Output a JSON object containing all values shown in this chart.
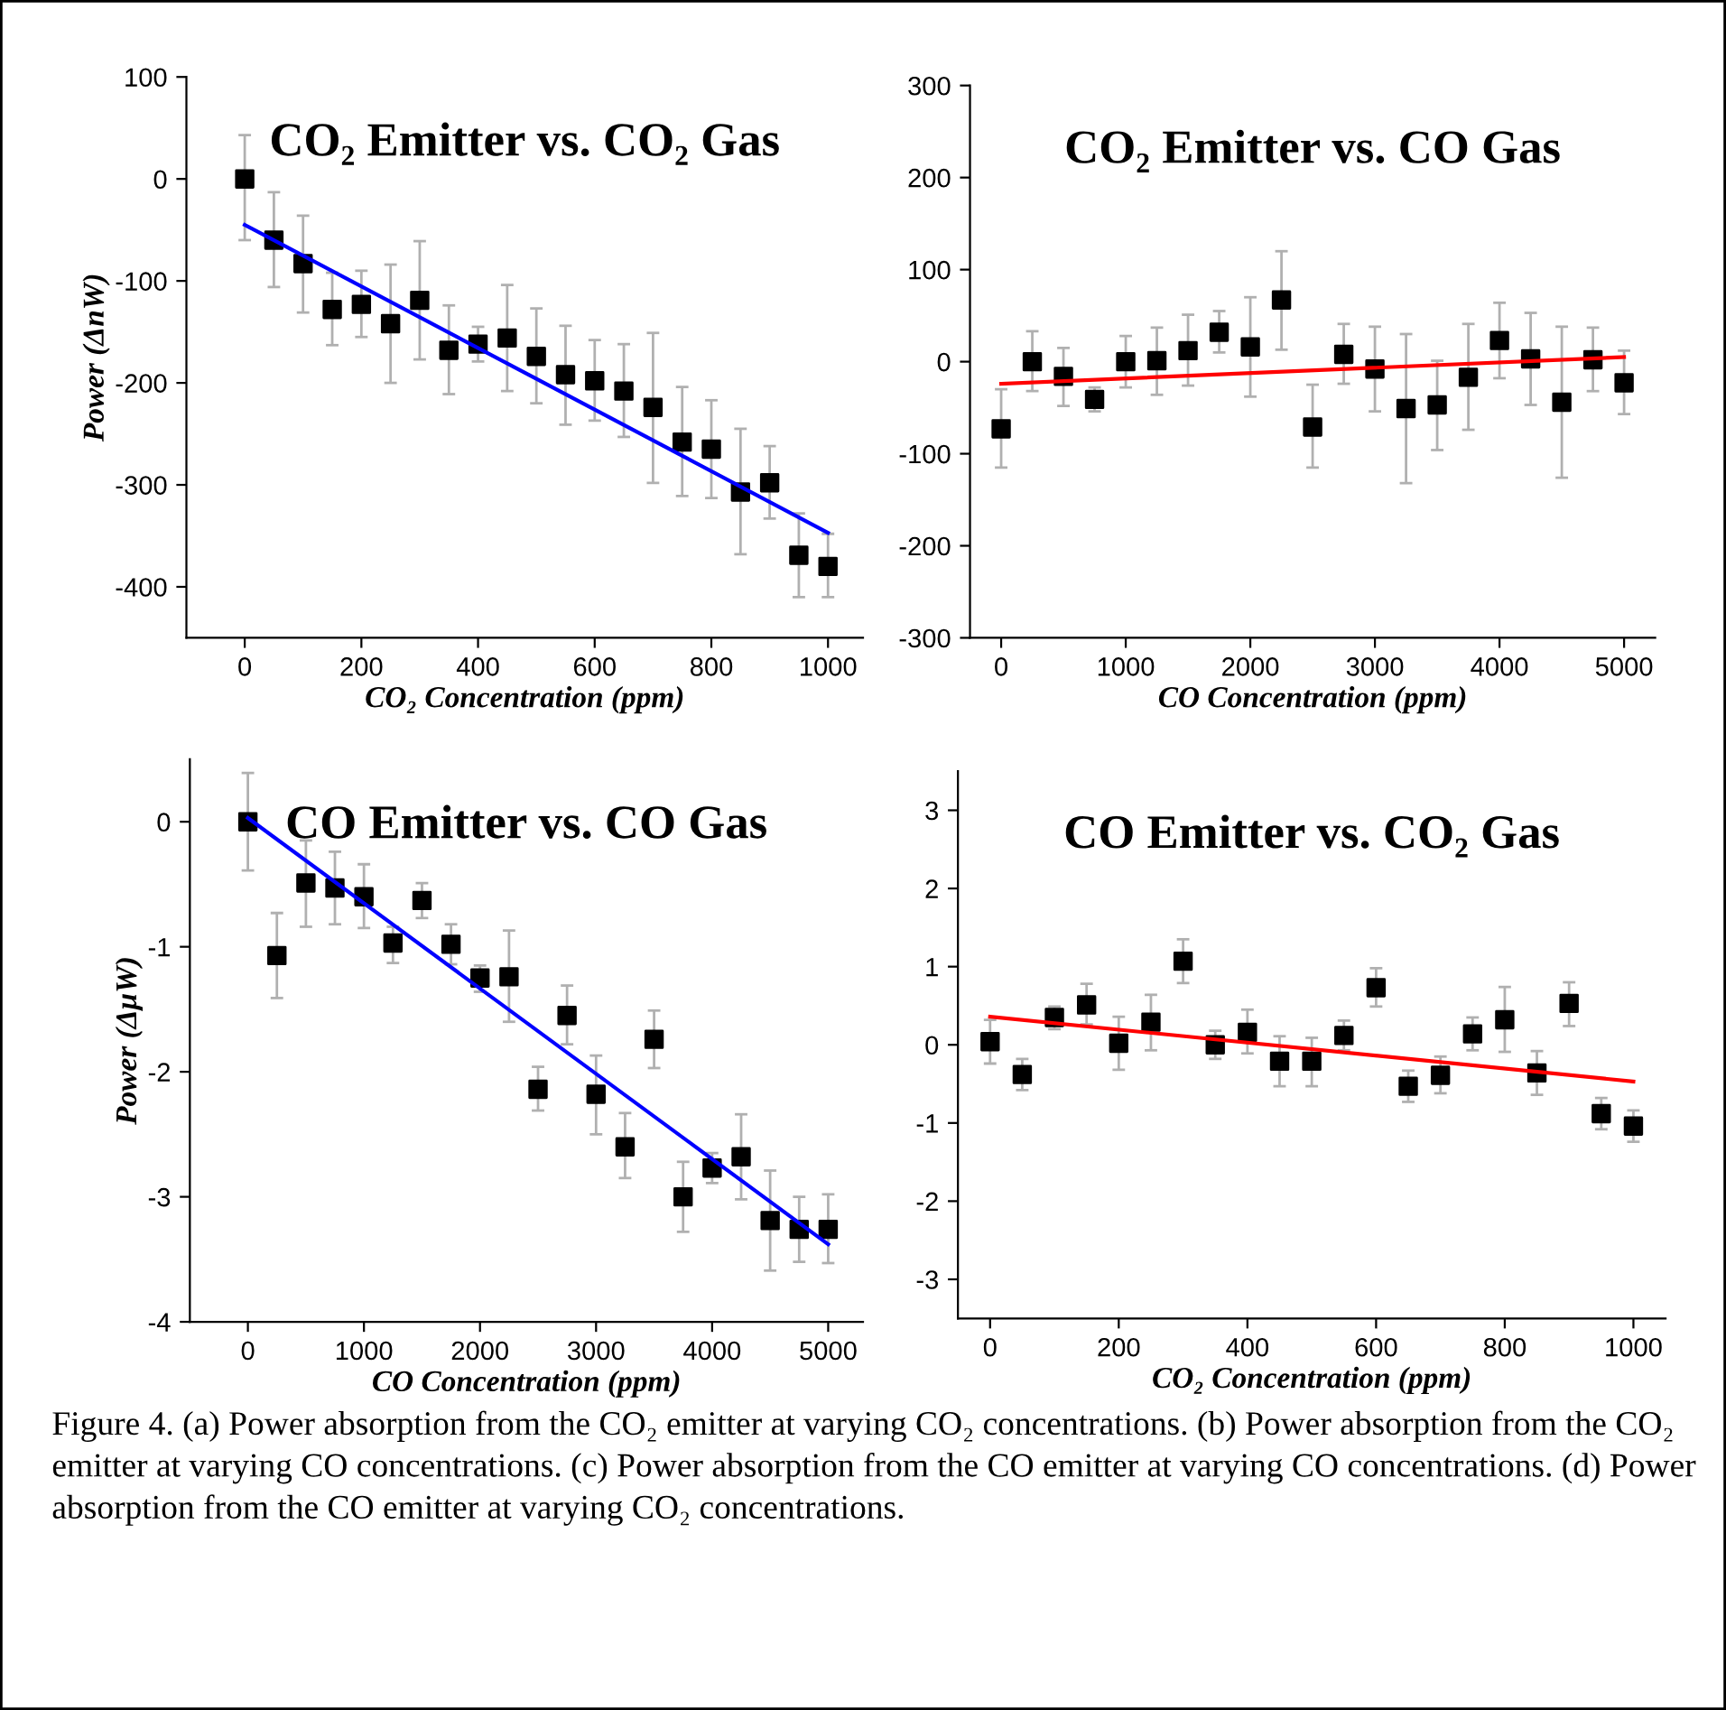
{
  "chart_data": [
    {
      "type": "scatter",
      "title": "CO₂ Emitter vs. CO₂ Gas",
      "xlabel": "CO₂ Concentration (ppm)",
      "ylabel": "Power (ΔnW)",
      "xlim": [
        -100,
        1060
      ],
      "ylim": [
        -450,
        100
      ],
      "xticks": [
        0,
        200,
        400,
        600,
        800,
        1000
      ],
      "yticks": [
        -400,
        -300,
        -200,
        -100,
        0,
        100
      ],
      "grid": false,
      "legend": false,
      "series": [
        {
          "color": "#000000",
          "marker": "square",
          "x": [
            0,
            50,
            100,
            150,
            200,
            250,
            300,
            350,
            400,
            450,
            500,
            550,
            600,
            650,
            700,
            750,
            800,
            850,
            900,
            950,
            1000
          ],
          "values": [
            0,
            -60,
            -83,
            -128,
            -123,
            -142,
            -119,
            -168,
            -162,
            -156,
            -174,
            -192,
            -198,
            -208,
            -224,
            -258,
            -265,
            -307,
            -298,
            -369,
            -380
          ],
          "errors": [
            [
              -60,
              43
            ],
            [
              -106,
              -13
            ],
            [
              -131,
              -36
            ],
            [
              -163,
              -92
            ],
            [
              -155,
              -90
            ],
            [
              -200,
              -84
            ],
            [
              -177,
              -61
            ],
            [
              -211,
              -124
            ],
            [
              -179,
              -145
            ],
            [
              -208,
              -104
            ],
            [
              -220,
              -127
            ],
            [
              -241,
              -144
            ],
            [
              -237,
              -158
            ],
            [
              -253,
              -162
            ],
            [
              -298,
              -151
            ],
            [
              -311,
              -204
            ],
            [
              -313,
              -217
            ],
            [
              -368,
              -245
            ],
            [
              -333,
              -262
            ],
            [
              -410,
              -328
            ],
            [
              -410,
              -348
            ]
          ]
        },
        {
          "type": "line",
          "marker": "none",
          "color": "#0000ff",
          "x": [
            0,
            1000
          ],
          "values": [
            -45,
            -347
          ]
        }
      ]
    },
    {
      "type": "scatter",
      "title": "CO₂ Emitter vs. CO Gas",
      "xlabel": "CO Concentration (ppm)",
      "xlim": [
        -250,
        5250
      ],
      "ylim": [
        -300,
        300
      ],
      "xticks": [
        0,
        1000,
        2000,
        3000,
        4000,
        5000
      ],
      "yticks": [
        -300,
        -200,
        -100,
        0,
        100,
        200,
        300
      ],
      "grid": false,
      "legend": false,
      "series": [
        {
          "color": "#000000",
          "marker": "square",
          "x": [
            0,
            250,
            500,
            750,
            1000,
            1250,
            1500,
            1750,
            2000,
            2250,
            2500,
            2750,
            3000,
            3250,
            3500,
            3750,
            4000,
            4250,
            4500,
            4750,
            5000
          ],
          "values": [
            -73,
            0,
            -16,
            -41,
            0,
            1,
            12,
            32,
            16,
            67,
            -71,
            8,
            -8,
            -51,
            -47,
            -17,
            23,
            3,
            -44,
            2,
            -23
          ],
          "errors": [
            [
              -115,
              -30
            ],
            [
              -32,
              33
            ],
            [
              -48,
              15
            ],
            [
              -54,
              -28
            ],
            [
              -28,
              28
            ],
            [
              -36,
              37
            ],
            [
              -26,
              51
            ],
            [
              10,
              55
            ],
            [
              -38,
              70
            ],
            [
              13,
              120
            ],
            [
              -115,
              -25
            ],
            [
              -24,
              41
            ],
            [
              -54,
              38
            ],
            [
              -132,
              30
            ],
            [
              -96,
              1
            ],
            [
              -74,
              41
            ],
            [
              -18,
              64
            ],
            [
              -47,
              53
            ],
            [
              -126,
              38
            ],
            [
              -32,
              37
            ],
            [
              -57,
              12
            ]
          ]
        },
        {
          "type": "line",
          "marker": "none",
          "color": "#ff0000",
          "x": [
            0,
            5000
          ],
          "values": [
            -24,
            5
          ]
        }
      ]
    },
    {
      "type": "scatter",
      "title": "CO Emitter vs. CO Gas",
      "xlabel": "CO Concentration (ppm)",
      "ylabel": "Power (ΔμW)",
      "xlim": [
        -500,
        5300
      ],
      "ylim": [
        -4,
        0.5
      ],
      "xticks": [
        0,
        1000,
        2000,
        3000,
        4000,
        5000
      ],
      "yticks": [
        -4,
        -3,
        -2,
        -1,
        0
      ],
      "grid": false,
      "legend": false,
      "series": [
        {
          "color": "#000000",
          "marker": "square",
          "x": [
            0,
            250,
            500,
            750,
            1000,
            1250,
            1500,
            1750,
            2000,
            2250,
            2500,
            2750,
            3000,
            3250,
            3500,
            3750,
            4000,
            4250,
            4500,
            4750,
            5000
          ],
          "values": [
            0,
            -1.07,
            -0.49,
            -0.53,
            -0.6,
            -0.97,
            -0.63,
            -0.98,
            -1.25,
            -1.24,
            -2.14,
            -1.55,
            -2.18,
            -2.6,
            -1.74,
            -3.0,
            -2.77,
            -2.68,
            -3.19,
            -3.26,
            -3.26
          ],
          "errors": [
            [
              -0.39,
              0.39
            ],
            [
              -1.41,
              -0.73
            ],
            [
              -0.84,
              -0.15
            ],
            [
              -0.82,
              -0.24
            ],
            [
              -0.85,
              -0.34
            ],
            [
              -1.13,
              -0.84
            ],
            [
              -0.77,
              -0.49
            ],
            [
              -1.14,
              -0.82
            ],
            [
              -1.36,
              -1.15
            ],
            [
              -1.6,
              -0.87
            ],
            [
              -2.31,
              -1.96
            ],
            [
              -1.78,
              -1.31
            ],
            [
              -2.5,
              -1.87
            ],
            [
              -2.85,
              -2.33
            ],
            [
              -1.97,
              -1.51
            ],
            [
              -3.28,
              -2.72
            ],
            [
              -2.89,
              -2.65
            ],
            [
              -3.02,
              -2.34
            ],
            [
              -3.59,
              -2.79
            ],
            [
              -3.52,
              -3.0
            ],
            [
              -3.53,
              -2.98
            ]
          ]
        },
        {
          "type": "line",
          "marker": "none",
          "color": "#0000ff",
          "x": [
            0,
            5000
          ],
          "values": [
            0.03,
            -3.38
          ]
        }
      ]
    },
    {
      "type": "scatter",
      "title": "CO Emitter vs. CO₂ Gas",
      "xlabel": "CO₂ Concentration (ppm)",
      "xlim": [
        -50,
        1050
      ],
      "ylim": [
        -3.5,
        3.5
      ],
      "xticks": [
        0,
        200,
        400,
        600,
        800,
        1000
      ],
      "yticks": [
        -3,
        -2,
        -1,
        0,
        1,
        2,
        3
      ],
      "grid": false,
      "legend": false,
      "annotations": [
        "Figure 4. (a) Power absorption from the CO₂ emitter at varying CO₂ concentrations. (b) Power absorption from the CO₂ emitter at varying CO concentrations. (c) Power absorption from the CO emitter at varying CO concentrations. (d) Power absorption from the CO emitter at varying CO₂ concentrations."
      ],
      "series": [
        {
          "color": "#000000",
          "marker": "square",
          "x": [
            0,
            50,
            100,
            150,
            200,
            250,
            300,
            350,
            400,
            450,
            500,
            550,
            600,
            650,
            700,
            750,
            800,
            850,
            900,
            950,
            1000
          ],
          "values": [
            0.04,
            -0.38,
            0.35,
            0.51,
            0.02,
            0.29,
            1.07,
            0.0,
            0.16,
            -0.21,
            -0.21,
            0.12,
            0.73,
            -0.53,
            -0.39,
            0.14,
            0.32,
            -0.36,
            0.53,
            -0.88,
            -1.04
          ],
          "errors": [
            [
              -0.24,
              0.32
            ],
            [
              -0.58,
              -0.18
            ],
            [
              0.2,
              0.49
            ],
            [
              0.26,
              0.78
            ],
            [
              -0.32,
              0.36
            ],
            [
              -0.07,
              0.64
            ],
            [
              0.79,
              1.35
            ],
            [
              -0.18,
              0.18
            ],
            [
              -0.11,
              0.45
            ],
            [
              -0.53,
              0.11
            ],
            [
              -0.53,
              0.09
            ],
            [
              -0.07,
              0.31
            ],
            [
              0.49,
              0.98
            ],
            [
              -0.73,
              -0.33
            ],
            [
              -0.62,
              -0.15
            ],
            [
              -0.07,
              0.35
            ],
            [
              -0.09,
              0.74
            ],
            [
              -0.64,
              -0.08
            ],
            [
              0.24,
              0.8
            ],
            [
              -1.08,
              -0.68
            ],
            [
              -1.24,
              -0.84
            ]
          ]
        },
        {
          "type": "line",
          "marker": "none",
          "color": "#ff0000",
          "x": [
            0,
            1000
          ],
          "values": [
            0.36,
            -0.47
          ]
        }
      ]
    }
  ]
}
